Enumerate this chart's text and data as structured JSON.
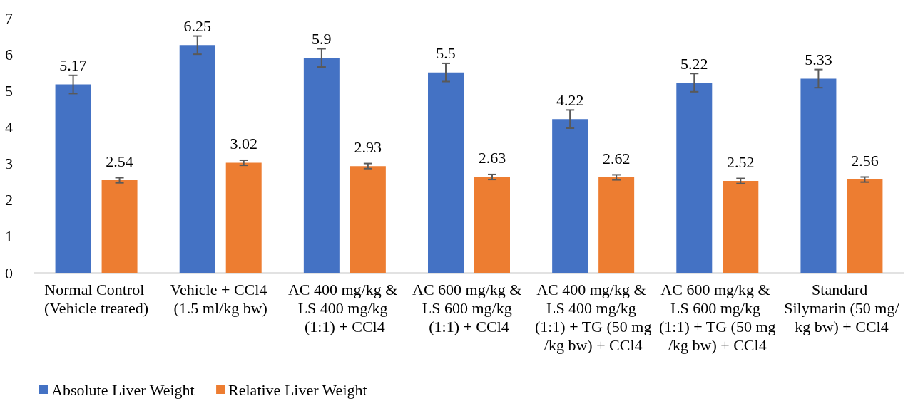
{
  "chart_data": {
    "type": "bar",
    "categories": [
      "Normal Control (Vehicle treated)",
      "Vehicle + CCl4 (1.5 ml/kg bw)",
      "AC 400 mg/kg & LS 400 mg/kg (1:1) + CCl4",
      "AC 600 mg/kg & LS 600 mg/kg (1:1) + CCl4",
      "AC 400 mg/kg & LS 400 mg/kg (1:1) + TG (50 mg/kg bw) + CCl4",
      "AC 600 mg/kg & LS 600 mg/kg (1:1) + TG (50 mg/kg bw) + CCl4",
      "Standard Silymarin (50 mg/kg bw) + CCl4"
    ],
    "series": [
      {
        "name": "Absolute Liver Weight",
        "color": "#4472c4",
        "values": [
          5.17,
          6.25,
          5.9,
          5.5,
          4.22,
          5.22,
          5.33
        ],
        "errors": [
          0.25,
          0.25,
          0.25,
          0.25,
          0.25,
          0.25,
          0.25
        ]
      },
      {
        "name": "Relative Liver Weight",
        "color": "#ed7d31",
        "values": [
          2.54,
          3.02,
          2.93,
          2.63,
          2.62,
          2.52,
          2.56
        ],
        "errors": [
          0.07,
          0.07,
          0.07,
          0.07,
          0.07,
          0.07,
          0.07
        ]
      }
    ],
    "ylim": [
      0,
      7
    ],
    "yticks": [
      0,
      1,
      2,
      3,
      4,
      5,
      6,
      7
    ],
    "grid": false,
    "legend": "bottom left",
    "data_labels": true
  }
}
